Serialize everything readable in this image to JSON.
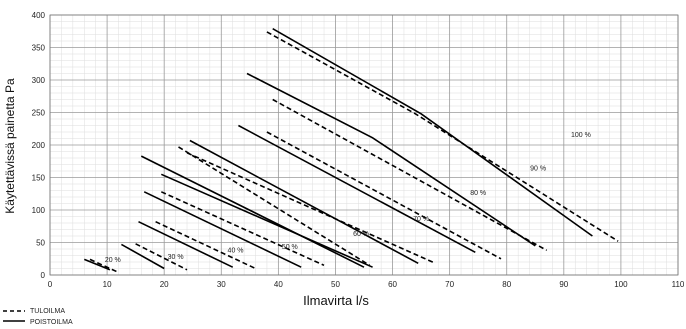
{
  "chart_data": {
    "type": "line",
    "title": "",
    "xlabel": "Ilmavirta l/s",
    "ylabel": "Käytettävissä painetta Pa",
    "xlim": [
      0,
      110
    ],
    "ylim": [
      0,
      400
    ],
    "xticks": [
      0,
      10,
      20,
      30,
      40,
      50,
      60,
      70,
      80,
      90,
      100,
      110
    ],
    "yticks": [
      0,
      50,
      100,
      150,
      200,
      250,
      300,
      350,
      400
    ],
    "grid": true,
    "legend_position": "bottom-left",
    "legend": [
      {
        "key": "tulo",
        "name": "TULOILMA",
        "style": "dashed"
      },
      {
        "key": "poisto",
        "name": "POISTOILMA",
        "style": "solid"
      }
    ],
    "speed_labels": [
      {
        "text": "20 %",
        "x": 11,
        "y": 20
      },
      {
        "text": "30 %",
        "x": 22,
        "y": 25
      },
      {
        "text": "40 %",
        "x": 32.5,
        "y": 35
      },
      {
        "text": "50 %",
        "x": 42,
        "y": 40
      },
      {
        "text": "60 %",
        "x": 54.5,
        "y": 60
      },
      {
        "text": "70 %",
        "x": 65,
        "y": 83
      },
      {
        "text": "80 %",
        "x": 75,
        "y": 123
      },
      {
        "text": "90 %",
        "x": 85.5,
        "y": 161
      },
      {
        "text": "100 %",
        "x": 93,
        "y": 212
      }
    ],
    "series": [
      {
        "name": "TULOILMA",
        "speed": "20 %",
        "style": "dashed",
        "x": [
          7,
          12
        ],
        "y": [
          24,
          4
        ]
      },
      {
        "name": "POISTOILMA",
        "speed": "20 %",
        "style": "solid",
        "x": [
          6,
          10.5
        ],
        "y": [
          24,
          8
        ]
      },
      {
        "name": "TULOILMA",
        "speed": "30 %",
        "style": "dashed",
        "x": [
          15,
          24
        ],
        "y": [
          48,
          8
        ]
      },
      {
        "name": "POISTOILMA",
        "speed": "30 %",
        "style": "solid",
        "x": [
          12.5,
          20
        ],
        "y": [
          47,
          10
        ]
      },
      {
        "name": "TULOILMA",
        "speed": "40 %",
        "style": "dashed",
        "x": [
          18.5,
          36
        ],
        "y": [
          82,
          10
        ]
      },
      {
        "name": "POISTOILMA",
        "speed": "40 %",
        "style": "solid",
        "x": [
          15.5,
          32
        ],
        "y": [
          82,
          12
        ]
      },
      {
        "name": "TULOILMA",
        "speed": "50 %",
        "style": "dashed",
        "x": [
          19.5,
          48
        ],
        "y": [
          128,
          15
        ]
      },
      {
        "name": "POISTOILMA",
        "speed": "50 %",
        "style": "solid",
        "x": [
          16.5,
          44
        ],
        "y": [
          128,
          12
        ]
      },
      {
        "name": "TULOILMA",
        "speed": "60 %",
        "style": "dashed",
        "x": [
          22.5,
          56
        ],
        "y": [
          197,
          15
        ]
      },
      {
        "name": "POISTOILMA",
        "speed": "60 %",
        "style": "solid",
        "x": [
          16,
          55
        ],
        "y": [
          183,
          12
        ]
      },
      {
        "name": "POISTOILMA",
        "speed": "60 %",
        "style": "solid",
        "x": [
          19.5,
          56.5
        ],
        "y": [
          155,
          12
        ]
      },
      {
        "name": "TULOILMA",
        "speed": "70 %",
        "style": "dashed",
        "x": [
          24,
          67.5
        ],
        "y": [
          188,
          18
        ]
      },
      {
        "name": "POISTOILMA",
        "speed": "70 %",
        "style": "solid",
        "x": [
          24.5,
          64.5
        ],
        "y": [
          207,
          18
        ]
      },
      {
        "name": "TULOILMA",
        "speed": "80 %",
        "style": "dashed",
        "x": [
          38,
          79
        ],
        "y": [
          220,
          25
        ]
      },
      {
        "name": "POISTOILMA",
        "speed": "80 %",
        "style": "solid",
        "x": [
          33,
          74.5
        ],
        "y": [
          230,
          35
        ]
      },
      {
        "name": "TULOILMA",
        "speed": "90 %",
        "style": "dashed",
        "x": [
          39,
          87
        ],
        "y": [
          270,
          38
        ]
      },
      {
        "name": "POISTOILMA",
        "speed": "90 %",
        "style": "solid",
        "x": [
          34.5,
          56.5,
          85
        ],
        "y": [
          310,
          211,
          45
        ]
      },
      {
        "name": "TULOILMA",
        "speed": "100 %",
        "style": "dashed",
        "x": [
          38,
          64,
          99.5
        ],
        "y": [
          374,
          248,
          52
        ]
      },
      {
        "name": "POISTOILMA",
        "speed": "100 %",
        "style": "solid",
        "x": [
          39,
          65,
          95
        ],
        "y": [
          379,
          248,
          60
        ]
      }
    ]
  }
}
